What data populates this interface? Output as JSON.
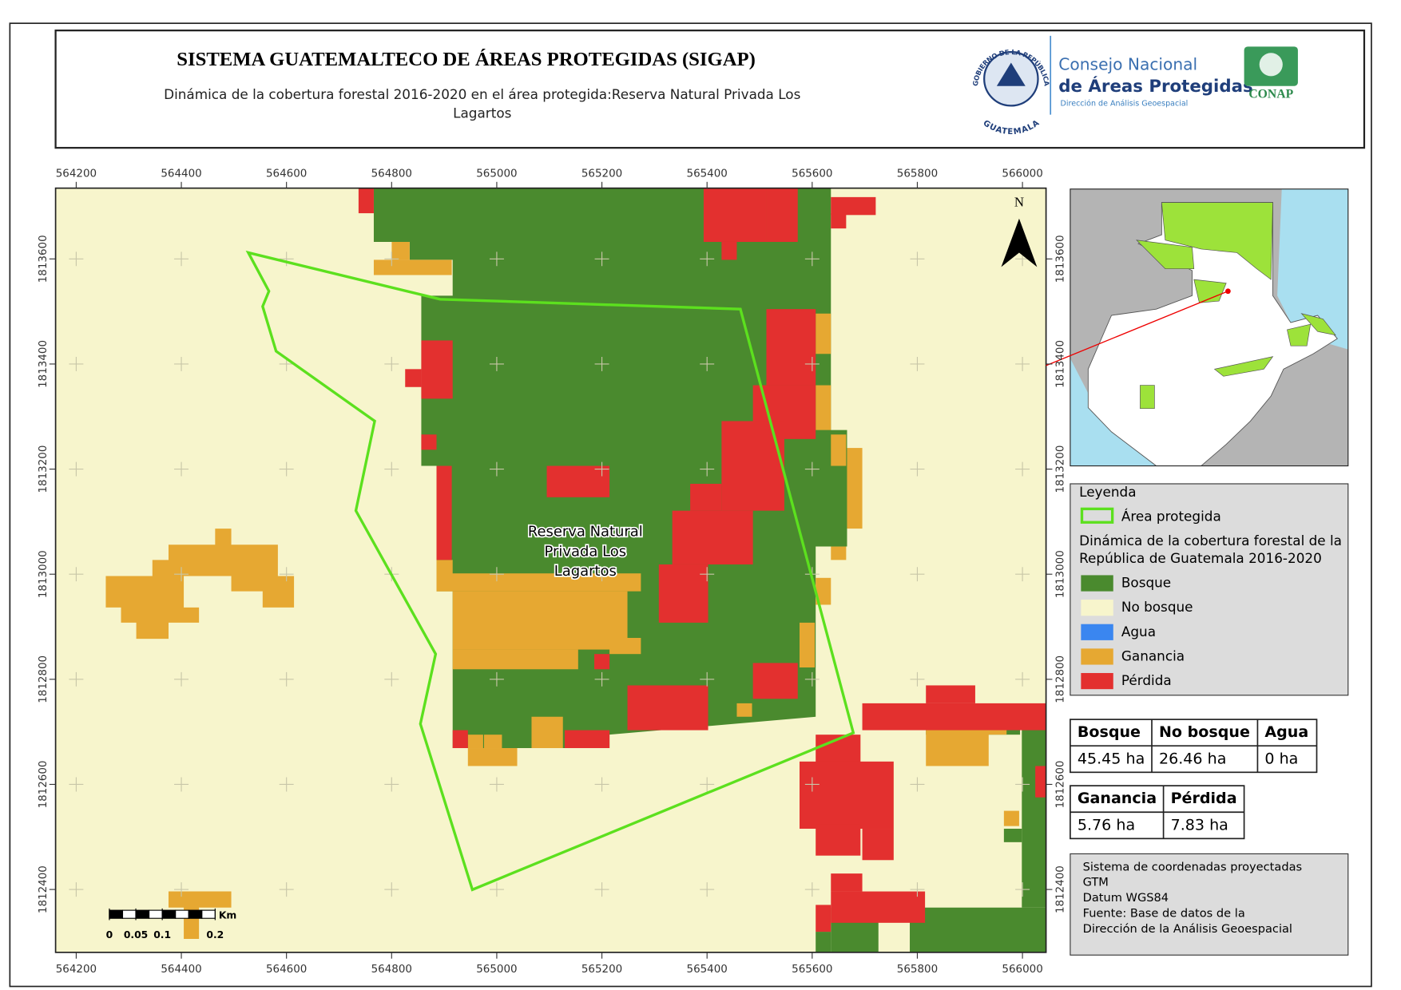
{
  "header": {
    "title": "SISTEMA GUATEMALTECO DE ÁREAS PROTEGIDAS  (SIGAP)",
    "subtitle_lines": [
      "Dinámica de la cobertura forestal 2016-2020 en el área protegida:Reserva Natural Privada Los",
      "Lagartos"
    ]
  },
  "logos": {
    "seal_top": "GOBIERNO DE LA REPÚBLICA",
    "seal_bottom": "GUATEMALA",
    "council_line1": "Consejo Nacional",
    "council_line2": "de Áreas Protegidas",
    "council_line3": "Dirección de Análisis Geoespacial",
    "conap": "CONAP"
  },
  "map": {
    "xticks": [
      564200,
      564400,
      564600,
      564800,
      565000,
      565200,
      565400,
      565600,
      565800,
      566000
    ],
    "yticks": [
      1813600,
      1813400,
      1813200,
      1813000,
      1812800,
      1812600,
      1812400
    ],
    "area_label_lines": [
      "Reserva Natural",
      "Privada Los",
      "Lagartos"
    ],
    "north": "N",
    "scale": {
      "unit": "Km",
      "ticks": [
        0,
        0.05,
        0.1,
        0.2
      ]
    }
  },
  "legend": {
    "title": "Leyenda",
    "boundary": {
      "label": "Área protegida",
      "color": "#5ce01e"
    },
    "subtitle_lines": [
      "Dinámica de la cobertura forestal de la",
      "República de Guatemala 2016-2020"
    ],
    "items": [
      {
        "label": "Bosque",
        "color": "#4a8a2e"
      },
      {
        "label": "No bosque",
        "color": "#f7f5cc"
      },
      {
        "label": "Agua",
        "color": "#3a86f0"
      },
      {
        "label": "Ganancia",
        "color": "#e6a832"
      },
      {
        "label": "Pérdida",
        "color": "#e3302f"
      }
    ]
  },
  "stats": {
    "table1": {
      "headers": [
        "Bosque",
        "No bosque",
        "Agua"
      ],
      "rows": [
        [
          "45.45 ha",
          "26.46 ha",
          "0 ha"
        ]
      ]
    },
    "table2": {
      "headers": [
        "Ganancia",
        "Pérdida"
      ],
      "rows": [
        [
          "5.76 ha",
          "7.83 ha"
        ]
      ]
    }
  },
  "info_lines": [
    "Sistema de coordenadas proyectadas",
    "GTM",
    "Datum WGS84",
    "Fuente: Base de datos de la",
    "Dirección de la Análisis Geoespacial"
  ]
}
